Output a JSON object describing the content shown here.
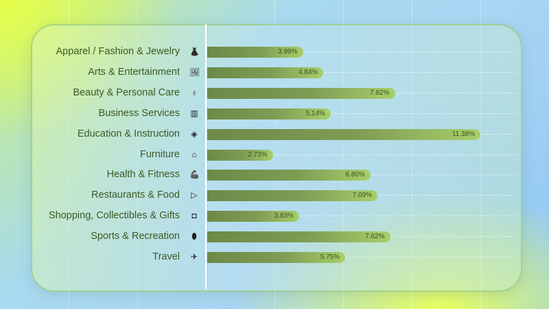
{
  "chart_data": {
    "type": "bar",
    "orientation": "horizontal",
    "categories": [
      "Apparel / Fashion & Jewelry",
      "Arts & Entertainment",
      "Beauty & Personal Care",
      "Business Services",
      "Education & Instruction",
      "Furniture",
      "Health & Fitness",
      "Restaurants & Food",
      "Shopping, Collectibles & Gifts",
      "Sports & Recreation",
      "Travel"
    ],
    "values": [
      3.99,
      4.84,
      7.82,
      5.14,
      11.38,
      2.73,
      6.8,
      7.09,
      3.83,
      7.62,
      5.75
    ],
    "value_labels": [
      "3.99%",
      "4.84%",
      "7.82%",
      "5.14%",
      "11.38%",
      "2.73%",
      "6.80%",
      "7.09%",
      "3.83%",
      "7.62%",
      "5.75%"
    ],
    "icons": [
      "dress-icon",
      "picture-frame-icon",
      "cosmetics-icon",
      "building-icon",
      "graduation-cap-icon",
      "sofa-icon",
      "muscle-arm-icon",
      "pizza-slice-icon",
      "shopping-bag-icon",
      "football-icon",
      "airplane-icon"
    ],
    "unit": "%",
    "xlim": [
      0,
      11.38
    ],
    "grid": false,
    "colors": {
      "bar_start": "#6c8a48",
      "bar_end": "#a7cf6a",
      "text": "#3d5a22"
    }
  }
}
